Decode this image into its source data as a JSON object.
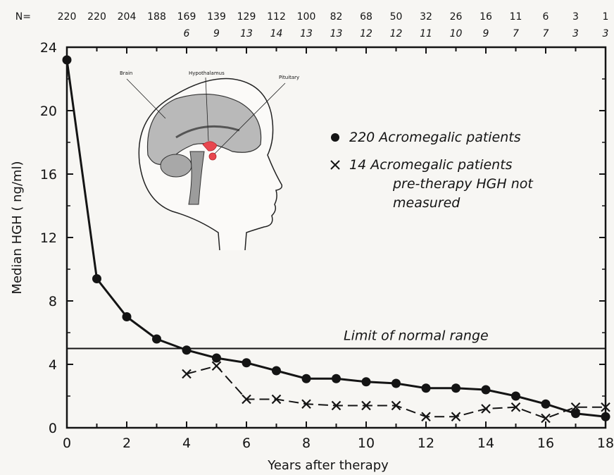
{
  "chart_data": {
    "type": "line",
    "xlabel": "Years after therapy",
    "ylabel": "Median HGH ( ng/ml)",
    "xlim": [
      0,
      18
    ],
    "ylim": [
      0,
      24
    ],
    "x_ticks": [
      0,
      2,
      4,
      6,
      8,
      10,
      12,
      14,
      16,
      18
    ],
    "x_tick_labels": [
      "0",
      "2",
      "4",
      "6",
      "8",
      "10",
      "12",
      "14",
      "16",
      "18"
    ],
    "y_ticks": [
      0,
      4,
      8,
      12,
      16,
      20,
      24
    ],
    "y_tick_labels": [
      "0",
      "4",
      "8",
      "12",
      "16",
      "20",
      "24"
    ],
    "patients_at_risk": {
      "prefix": "N=",
      "x": [
        0,
        1,
        2,
        3,
        4,
        5,
        6,
        7,
        8,
        9,
        10,
        11,
        12,
        13,
        14,
        15,
        16,
        17,
        18
      ],
      "group_220": [
        "220",
        "220",
        "204",
        "188",
        "169",
        "139",
        "129",
        "112",
        "100",
        "82",
        "68",
        "50",
        "32",
        "26",
        "16",
        "11",
        "6",
        "3",
        "1"
      ],
      "group_14": [
        "",
        "",
        "",
        "",
        "6",
        "9",
        "13",
        "14",
        "13",
        "13",
        "12",
        "12",
        "11",
        "10",
        "9",
        "7",
        "7",
        "3",
        "3"
      ]
    },
    "series": [
      {
        "name": "220 Acromegalic patients",
        "marker": "filled-circle",
        "line": "solid",
        "x": [
          0,
          1,
          2,
          3,
          4,
          5,
          6,
          7,
          8,
          9,
          10,
          11,
          12,
          13,
          14,
          15,
          16,
          17,
          18
        ],
        "values": [
          23.2,
          9.4,
          7.0,
          5.6,
          4.9,
          4.4,
          4.1,
          3.6,
          3.1,
          3.1,
          2.9,
          2.8,
          2.5,
          2.5,
          2.4,
          2.0,
          1.5,
          0.9,
          0.7
        ]
      },
      {
        "name": "14 Acromegalic patients pre-therapy HGH not measured",
        "legend_lines": [
          "14  Acromegalic patients",
          "pre-therapy HGH not",
          "measured"
        ],
        "marker": "x",
        "line": "dashed",
        "x": [
          4,
          5,
          6,
          7,
          8,
          9,
          10,
          11,
          12,
          13,
          14,
          15,
          16,
          17,
          18
        ],
        "values": [
          3.4,
          3.9,
          1.8,
          1.8,
          1.5,
          1.4,
          1.4,
          1.4,
          0.7,
          0.7,
          1.2,
          1.3,
          0.6,
          1.3,
          1.3
        ]
      }
    ],
    "reference_line": {
      "y": 5.0,
      "label": "Limit of normal range"
    },
    "legend_position": "upper-right",
    "grid": false,
    "inset": {
      "type": "brain-diagram",
      "labels": [
        "Brain",
        "Hypothalamus",
        "Pituitary"
      ],
      "highlight_color": "#e8474f"
    }
  }
}
